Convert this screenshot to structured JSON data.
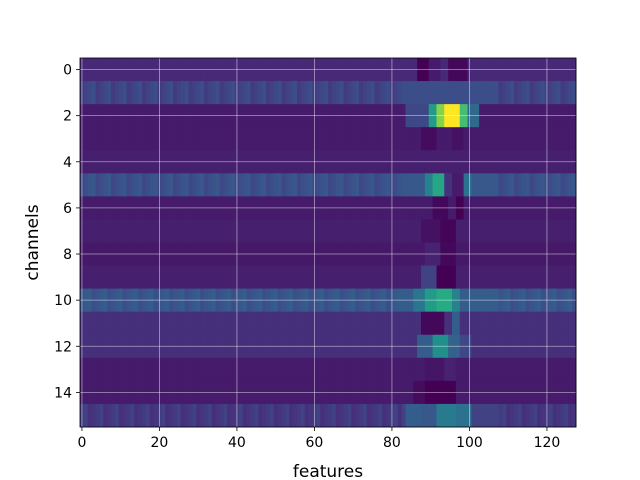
{
  "chart_data": {
    "type": "heatmap",
    "xlabel": "features",
    "ylabel": "channels",
    "x_ticks": [
      0,
      20,
      40,
      60,
      80,
      100,
      120
    ],
    "y_ticks": [
      0,
      2,
      4,
      6,
      8,
      10,
      12,
      14
    ],
    "xlim": [
      -0.5,
      127.5
    ],
    "ylim": [
      15.5,
      -0.5
    ],
    "n_features": 128,
    "n_channels": 16,
    "colormap": "viridis",
    "grid": true,
    "baseline": [
      0.12,
      0.24,
      0.08,
      0.08,
      0.09,
      0.28,
      0.08,
      0.09,
      0.07,
      0.09,
      0.3,
      0.14,
      0.14,
      0.08,
      0.08,
      0.2
    ],
    "hotspots": [
      {
        "channel": 0,
        "spans": [
          {
            "x": [
              87,
              90
            ],
            "v": 0.0
          },
          {
            "x": [
              90,
              93
            ],
            "v": 0.08
          },
          {
            "x": [
              95,
              100
            ],
            "v": 0.02
          }
        ]
      },
      {
        "channel": 2,
        "spans": [
          {
            "x": [
              84,
              90
            ],
            "v": 0.22
          },
          {
            "x": [
              90,
              92
            ],
            "v": 0.55
          },
          {
            "x": [
              92,
              94
            ],
            "v": 0.82
          },
          {
            "x": [
              94,
              98
            ],
            "v": 1.0
          },
          {
            "x": [
              98,
              100
            ],
            "v": 0.7
          },
          {
            "x": [
              100,
              103
            ],
            "v": 0.35
          }
        ]
      },
      {
        "channel": 3,
        "spans": [
          {
            "x": [
              88,
              92
            ],
            "v": 0.03
          },
          {
            "x": [
              96,
              99
            ],
            "v": 0.05
          }
        ]
      },
      {
        "channel": 5,
        "spans": [
          {
            "x": [
              89,
              91
            ],
            "v": 0.45
          },
          {
            "x": [
              91,
              94
            ],
            "v": 0.6
          },
          {
            "x": [
              94,
              96
            ],
            "v": 0.15
          },
          {
            "x": [
              96,
              99
            ],
            "v": 0.08
          },
          {
            "x": [
              99,
              101
            ],
            "v": 0.38
          }
        ]
      },
      {
        "channel": 6,
        "spans": [
          {
            "x": [
              91,
              95
            ],
            "v": 0.02
          },
          {
            "x": [
              97,
              99
            ],
            "v": 0.0
          }
        ]
      },
      {
        "channel": 7,
        "spans": [
          {
            "x": [
              88,
              93
            ],
            "v": 0.05
          },
          {
            "x": [
              93,
              97
            ],
            "v": 0.01
          }
        ]
      },
      {
        "channel": 8,
        "spans": [
          {
            "x": [
              89,
              93
            ],
            "v": 0.1
          },
          {
            "x": [
              93,
              97
            ],
            "v": 0.02
          }
        ]
      },
      {
        "channel": 9,
        "spans": [
          {
            "x": [
              88,
              92
            ],
            "v": 0.2
          },
          {
            "x": [
              92,
              97
            ],
            "v": 0.0
          }
        ]
      },
      {
        "channel": 10,
        "spans": [
          {
            "x": [
              86,
              89
            ],
            "v": 0.4
          },
          {
            "x": [
              89,
              92
            ],
            "v": 0.55
          },
          {
            "x": [
              92,
              96
            ],
            "v": 0.62
          },
          {
            "x": [
              96,
              98
            ],
            "v": 0.45
          }
        ]
      },
      {
        "channel": 11,
        "spans": [
          {
            "x": [
              88,
              94
            ],
            "v": 0.02
          },
          {
            "x": [
              96,
              98
            ],
            "v": 0.3
          }
        ]
      },
      {
        "channel": 12,
        "spans": [
          {
            "x": [
              87,
              91
            ],
            "v": 0.3
          },
          {
            "x": [
              91,
              95
            ],
            "v": 0.5
          },
          {
            "x": [
              95,
              98
            ],
            "v": 0.32
          },
          {
            "x": [
              98,
              101
            ],
            "v": 0.22
          }
        ]
      },
      {
        "channel": 13,
        "spans": [
          {
            "x": [
              89,
              94
            ],
            "v": 0.06
          },
          {
            "x": [
              94,
              97
            ],
            "v": 0.1
          }
        ]
      },
      {
        "channel": 14,
        "spans": [
          {
            "x": [
              86,
              89
            ],
            "v": 0.03
          },
          {
            "x": [
              89,
              97
            ],
            "v": 0.0
          }
        ]
      },
      {
        "channel": 15,
        "spans": [
          {
            "x": [
              84,
              88
            ],
            "v": 0.3
          },
          {
            "x": [
              88,
              92
            ],
            "v": 0.28
          },
          {
            "x": [
              92,
              97
            ],
            "v": 0.42
          },
          {
            "x": [
              97,
              101
            ],
            "v": 0.38
          }
        ]
      }
    ]
  }
}
